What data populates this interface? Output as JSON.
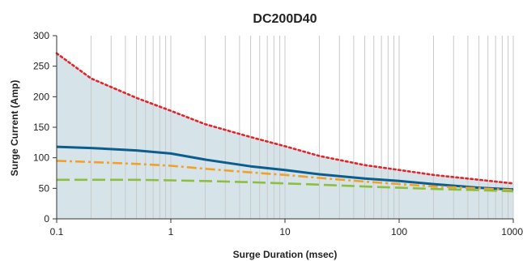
{
  "chart_data": {
    "type": "line",
    "title": "DC200D40",
    "xlabel": "Surge Duration (msec)",
    "ylabel": "Surge Current (Amp)",
    "x_scale": "log",
    "xlim": [
      0.1,
      1000
    ],
    "ylim": [
      0,
      300
    ],
    "x_ticks": [
      0.1,
      1,
      10,
      100,
      1000
    ],
    "x_tick_labels": [
      "0.1",
      "1",
      "10",
      "100",
      "1000"
    ],
    "y_ticks": [
      0,
      50,
      100,
      150,
      200,
      250,
      300
    ],
    "y_tick_labels": [
      "0",
      "50",
      "100",
      "150",
      "200",
      "250",
      "300"
    ],
    "grid": "vertical log grid",
    "colors": {
      "fill": "#d6e4ea",
      "grid": "#c9c9c9",
      "red": "#e0262b",
      "blue": "#0a5d8c",
      "orange": "#f0a12c",
      "green": "#8cbf3f"
    },
    "series": [
      {
        "style": "dotted",
        "color": "#e0262b",
        "fill_under": true,
        "x": [
          0.1,
          0.2,
          0.5,
          1,
          2,
          5,
          10,
          20,
          50,
          100,
          200,
          500,
          1000
        ],
        "y": [
          271,
          230,
          198,
          177,
          155,
          134,
          119,
          103,
          88,
          80,
          72,
          64,
          58
        ]
      },
      {
        "style": "solid",
        "color": "#0a5d8c",
        "x": [
          0.1,
          0.2,
          0.5,
          1,
          2,
          5,
          10,
          20,
          50,
          100,
          200,
          500,
          1000
        ],
        "y": [
          118,
          116,
          112,
          107,
          97,
          86,
          80,
          73,
          66,
          62,
          57,
          51,
          48
        ]
      },
      {
        "style": "dash-dot",
        "color": "#f0a12c",
        "x": [
          0.1,
          0.2,
          0.5,
          1,
          2,
          5,
          10,
          20,
          50,
          100,
          200,
          500,
          1000
        ],
        "y": [
          95,
          93,
          90,
          87,
          82,
          76,
          72,
          67,
          61,
          57,
          53,
          50,
          47
        ]
      },
      {
        "style": "dashed",
        "color": "#8cbf3f",
        "x": [
          0.1,
          0.2,
          0.5,
          1,
          2,
          5,
          10,
          20,
          50,
          100,
          200,
          500,
          1000
        ],
        "y": [
          64,
          64,
          64,
          63,
          62,
          60,
          58,
          56,
          53,
          51,
          49,
          47,
          45
        ]
      }
    ]
  }
}
